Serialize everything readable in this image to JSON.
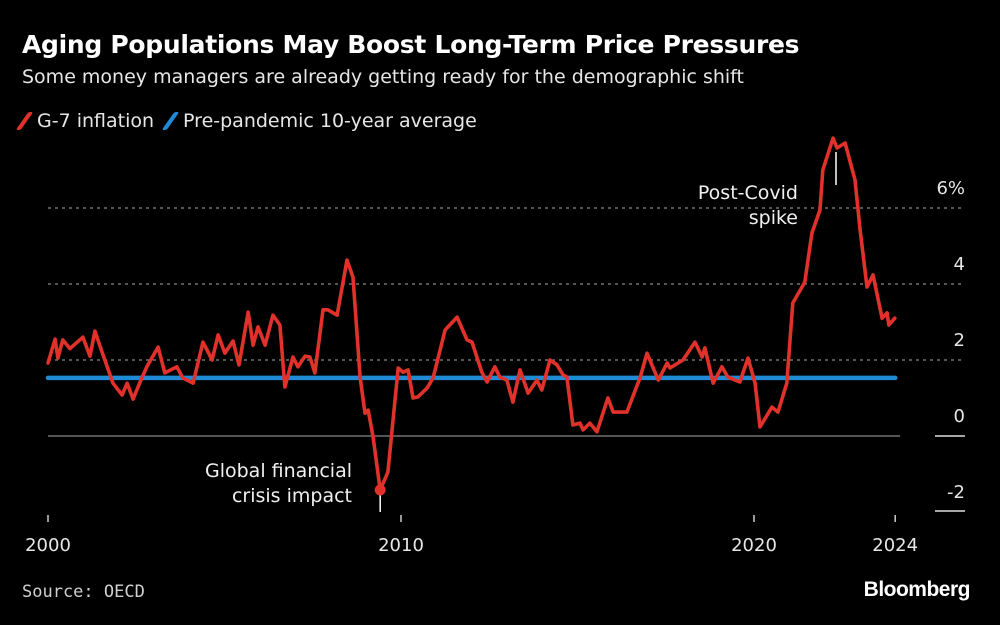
{
  "title": "Aging Populations May Boost Long-Term Price Pressures",
  "subtitle": "Some money managers are already getting ready for the demographic shift",
  "source": "Source: OECD",
  "logo": "Bloomberg",
  "chart_data": {
    "type": "line",
    "title": "Aging Populations May Boost Long-Term Price Pressures",
    "xlabel": "",
    "ylabel": "",
    "xlim": [
      2000,
      2025
    ],
    "ylim": [
      -2,
      8
    ],
    "x_ticks": [
      {
        "value": 2000,
        "label": "2000"
      },
      {
        "value": 2010,
        "label": "2010"
      },
      {
        "value": 2020,
        "label": "2020"
      },
      {
        "value": 2024,
        "label": "2024"
      }
    ],
    "y_ticks": [
      {
        "value": 6,
        "label": "6%"
      },
      {
        "value": 4,
        "label": "4"
      },
      {
        "value": 2,
        "label": "2"
      },
      {
        "value": 0,
        "label": "0"
      },
      {
        "value": -2,
        "label": "-2"
      }
    ],
    "grid": "horizontal dashed",
    "legend_placement": "top-left",
    "series": [
      {
        "name": "G-7 inflation",
        "color": "#e0312b",
        "points": [
          [
            2000.0,
            1.92
          ],
          [
            2000.2,
            2.55
          ],
          [
            2000.28,
            2.05
          ],
          [
            2000.42,
            2.53
          ],
          [
            2000.62,
            2.3
          ],
          [
            2000.99,
            2.6
          ],
          [
            2001.19,
            2.1
          ],
          [
            2001.33,
            2.76
          ],
          [
            2001.56,
            2.13
          ],
          [
            2001.84,
            1.39
          ],
          [
            2002.1,
            1.08
          ],
          [
            2002.24,
            1.39
          ],
          [
            2002.41,
            0.97
          ],
          [
            2002.61,
            1.42
          ],
          [
            2002.8,
            1.82
          ],
          [
            2003.12,
            2.34
          ],
          [
            2003.31,
            1.66
          ],
          [
            2003.65,
            1.82
          ],
          [
            2003.82,
            1.53
          ],
          [
            2004.11,
            1.39
          ],
          [
            2004.39,
            2.47
          ],
          [
            2004.65,
            2.0
          ],
          [
            2004.82,
            2.66
          ],
          [
            2005.01,
            2.18
          ],
          [
            2005.24,
            2.5
          ],
          [
            2005.41,
            1.87
          ],
          [
            2005.67,
            3.26
          ],
          [
            2005.81,
            2.39
          ],
          [
            2005.95,
            2.87
          ],
          [
            2006.15,
            2.39
          ],
          [
            2006.37,
            3.18
          ],
          [
            2006.57,
            2.92
          ],
          [
            2006.71,
            1.29
          ],
          [
            2006.94,
            2.08
          ],
          [
            2007.08,
            1.82
          ],
          [
            2007.28,
            2.1
          ],
          [
            2007.42,
            2.08
          ],
          [
            2007.56,
            1.66
          ],
          [
            2007.79,
            3.32
          ],
          [
            2007.93,
            3.32
          ],
          [
            2008.19,
            3.18
          ],
          [
            2008.47,
            4.63
          ],
          [
            2008.64,
            4.18
          ],
          [
            2008.84,
            1.55
          ],
          [
            2008.98,
            0.6
          ],
          [
            2009.07,
            0.68
          ],
          [
            2009.21,
            -0.03
          ],
          [
            2009.41,
            -1.42
          ],
          [
            2009.63,
            -0.95
          ],
          [
            2009.92,
            1.79
          ],
          [
            2010.06,
            1.68
          ],
          [
            2010.2,
            1.74
          ],
          [
            2010.34,
            1.0
          ],
          [
            2010.48,
            1.03
          ],
          [
            2010.74,
            1.26
          ],
          [
            2010.91,
            1.53
          ],
          [
            2011.25,
            2.79
          ],
          [
            2011.59,
            3.13
          ],
          [
            2011.87,
            2.53
          ],
          [
            2012.01,
            2.47
          ],
          [
            2012.29,
            1.68
          ],
          [
            2012.44,
            1.42
          ],
          [
            2012.66,
            1.82
          ],
          [
            2012.8,
            1.55
          ],
          [
            2013.0,
            1.47
          ],
          [
            2013.17,
            0.89
          ],
          [
            2013.37,
            1.74
          ],
          [
            2013.6,
            1.13
          ],
          [
            2013.85,
            1.47
          ],
          [
            2013.99,
            1.21
          ],
          [
            2014.22,
            2.0
          ],
          [
            2014.42,
            1.87
          ],
          [
            2014.59,
            1.61
          ],
          [
            2014.7,
            1.55
          ],
          [
            2014.87,
            0.29
          ],
          [
            2015.07,
            0.34
          ],
          [
            2015.16,
            0.16
          ],
          [
            2015.35,
            0.34
          ],
          [
            2015.55,
            0.11
          ],
          [
            2015.86,
            1.0
          ],
          [
            2016.01,
            0.63
          ],
          [
            2016.4,
            0.63
          ],
          [
            2016.78,
            1.55
          ],
          [
            2016.97,
            2.18
          ],
          [
            2017.29,
            1.47
          ],
          [
            2017.54,
            1.92
          ],
          [
            2017.62,
            1.79
          ],
          [
            2017.99,
            2.0
          ],
          [
            2018.33,
            2.47
          ],
          [
            2018.53,
            2.08
          ],
          [
            2018.61,
            2.32
          ],
          [
            2018.84,
            1.39
          ],
          [
            2019.09,
            1.82
          ],
          [
            2019.26,
            1.55
          ],
          [
            2019.6,
            1.42
          ],
          [
            2019.83,
            2.05
          ],
          [
            2020.03,
            1.39
          ],
          [
            2020.17,
            0.24
          ],
          [
            2020.51,
            0.76
          ],
          [
            2020.68,
            0.63
          ],
          [
            2020.93,
            1.39
          ],
          [
            2021.1,
            3.5
          ],
          [
            2021.44,
            4.05
          ],
          [
            2021.64,
            5.34
          ],
          [
            2021.87,
            5.95
          ],
          [
            2021.95,
            7.0
          ],
          [
            2022.24,
            7.84
          ],
          [
            2022.35,
            7.58
          ],
          [
            2022.58,
            7.71
          ],
          [
            2022.86,
            6.74
          ],
          [
            2023.0,
            5.47
          ],
          [
            2023.2,
            3.92
          ],
          [
            2023.37,
            4.24
          ],
          [
            2023.63,
            3.1
          ],
          [
            2023.77,
            3.24
          ],
          [
            2023.82,
            2.92
          ],
          [
            2023.99,
            3.1
          ]
        ]
      },
      {
        "name": "Pre-pandemic 10-year average",
        "color": "#1f8ad6",
        "points": [
          [
            2000.0,
            1.53
          ],
          [
            2024.0,
            1.53
          ]
        ]
      }
    ],
    "annotations": [
      {
        "lines": [
          "Global financial",
          "crisis impact"
        ],
        "x": 2009.41,
        "y": -1.42,
        "marker": "dot"
      },
      {
        "lines": [
          "Post-Covid",
          "spike"
        ],
        "x": 2022.3,
        "y": 7.6,
        "marker": "line"
      }
    ]
  }
}
